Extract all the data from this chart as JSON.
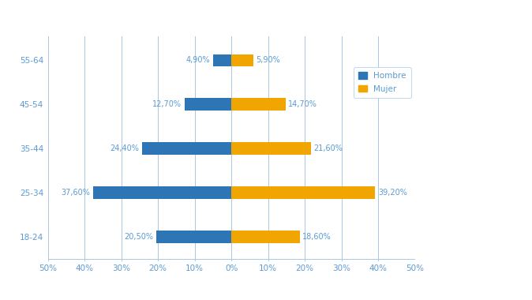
{
  "categories": [
    "18-24",
    "25-34",
    "35-44",
    "45-54",
    "55-64"
  ],
  "hombre_values": [
    20.5,
    37.6,
    24.4,
    12.7,
    4.9
  ],
  "mujer_values": [
    18.6,
    39.2,
    21.6,
    14.7,
    5.9
  ],
  "hombre_labels": [
    "20,50%",
    "37,60%",
    "24,40%",
    "12,70%",
    "4,90%"
  ],
  "mujer_labels": [
    "18,60%",
    "39,20%",
    "21,60%",
    "14,70%",
    "5,90%"
  ],
  "hombre_color": "#2e75b6",
  "mujer_color": "#f0a500",
  "legend_hombre": "Hombre",
  "legend_mujer": "Mujer",
  "xlim": 50,
  "xtick_positions": [
    -50,
    -40,
    -30,
    -20,
    -10,
    0,
    10,
    20,
    30,
    40,
    50
  ],
  "xtick_labels": [
    "50%",
    "40%",
    "30%",
    "20%",
    "10%",
    "0%",
    "10%",
    "20%",
    "30%",
    "40%",
    "50%"
  ],
  "background_color": "#ffffff",
  "axis_color": "#a8c8e8",
  "text_color": "#5b9bd5",
  "fontsize": 7.5,
  "label_fontsize": 7.0,
  "bar_height": 0.28
}
